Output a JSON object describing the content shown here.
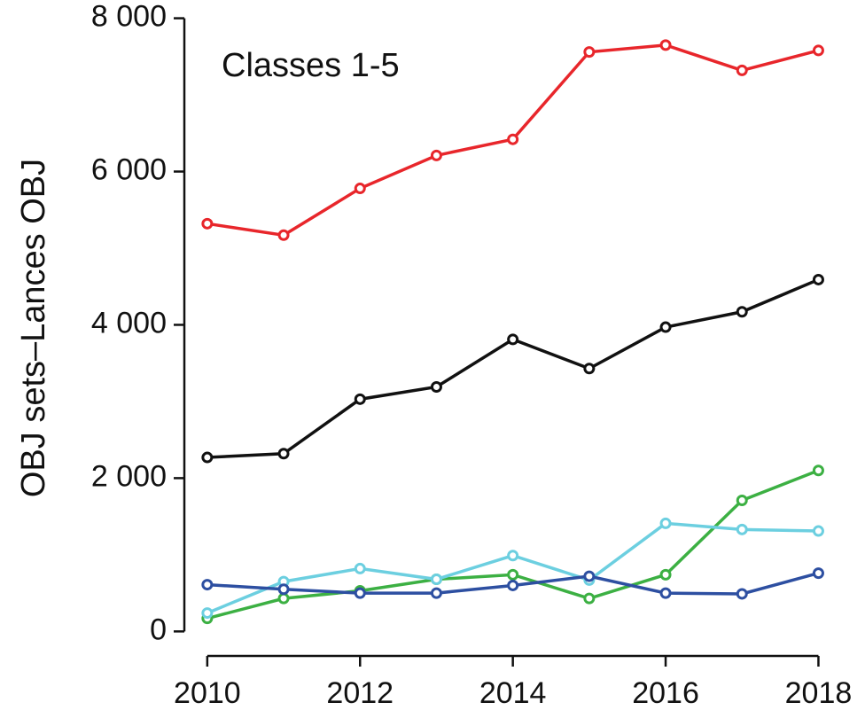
{
  "chart_data": {
    "type": "line",
    "annotation": "Classes 1-5",
    "y_label": "OBJ sets–Lances OBJ",
    "x": [
      2010,
      2011,
      2012,
      2013,
      2014,
      2015,
      2016,
      2017,
      2018
    ],
    "xlim": [
      2009.7,
      2018.25
    ],
    "xticks": [
      2010,
      2012,
      2014,
      2016,
      2018
    ],
    "ylim": [
      -320,
      8030
    ],
    "yticks": [
      0,
      {
        "value": 2000,
        "label": "2 000"
      },
      {
        "value": 4000,
        "label": "4 000"
      },
      {
        "value": 6000,
        "label": "6 000"
      },
      {
        "value": 8000,
        "label": "8 000"
      }
    ],
    "series": [
      {
        "color": "#e8262b",
        "values": [
          5320,
          5170,
          5780,
          6210,
          6420,
          7560,
          7650,
          7320,
          7580
        ]
      },
      {
        "color": "#111111",
        "values": [
          2270,
          2320,
          3030,
          3190,
          3810,
          3430,
          3970,
          4170,
          4590
        ]
      },
      {
        "color": "#3cb043",
        "values": [
          170,
          430,
          530,
          680,
          740,
          430,
          740,
          1710,
          2100
        ]
      },
      {
        "color": "#6ccfe0",
        "values": [
          240,
          650,
          820,
          680,
          990,
          670,
          1410,
          1330,
          1310
        ]
      },
      {
        "color": "#2d4fa1",
        "values": [
          610,
          550,
          500,
          500,
          600,
          720,
          500,
          490,
          760
        ]
      }
    ]
  }
}
